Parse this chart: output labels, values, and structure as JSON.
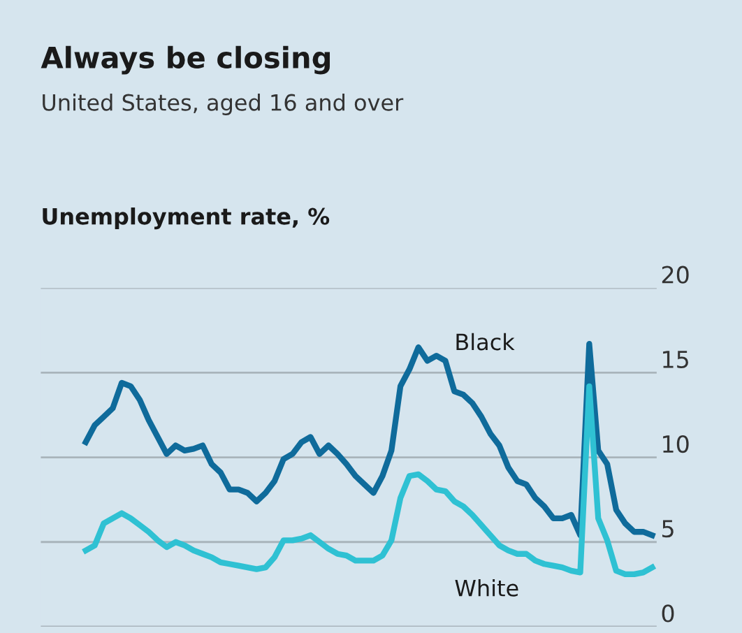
{
  "chart_data": {
    "type": "line",
    "title": "Always be closing",
    "subtitle": "United States, aged 16 and over",
    "ylabel": "Unemployment rate, %",
    "categories": [
      null,
      null,
      null,
      null,
      null,
      null,
      null,
      null,
      null,
      null,
      null,
      null,
      null,
      null,
      null,
      null,
      null,
      null,
      null,
      null,
      null,
      null,
      null,
      null,
      null,
      null,
      null,
      null,
      null,
      null,
      null,
      null,
      null,
      null,
      null,
      null,
      null,
      null,
      null,
      null,
      null,
      null,
      null,
      null,
      null,
      null,
      null,
      null,
      null,
      null,
      null,
      null,
      null,
      null,
      null,
      null,
      null,
      null,
      null,
      null,
      null,
      null,
      null,
      null
    ],
    "series": [
      {
        "name": "Black",
        "color": "#0f6b9b",
        "values": [
          10.9,
          11.9,
          12.4,
          12.9,
          14.4,
          14.2,
          13.4,
          12.2,
          11.2,
          10.2,
          10.7,
          10.4,
          10.5,
          10.7,
          9.6,
          9.1,
          8.1,
          8.1,
          7.9,
          7.4,
          7.9,
          8.6,
          9.9,
          10.2,
          10.9,
          11.2,
          10.2,
          10.7,
          10.2,
          9.6,
          8.9,
          8.4,
          7.9,
          8.9,
          10.4,
          14.2,
          15.2,
          16.5,
          15.7,
          16.0,
          15.7,
          13.9,
          13.7,
          13.2,
          12.4,
          11.4,
          10.7,
          9.4,
          8.6,
          8.4,
          7.6,
          7.1,
          6.4,
          6.4,
          6.6,
          5.4,
          16.7,
          10.4,
          9.6,
          6.9,
          6.1,
          5.6,
          5.6,
          5.4
        ]
      },
      {
        "name": "White",
        "color": "#2fc1d3",
        "values": [
          4.5,
          4.8,
          6.1,
          6.4,
          6.7,
          6.4,
          6.0,
          5.6,
          5.1,
          4.7,
          5.0,
          4.8,
          4.5,
          4.3,
          4.1,
          3.8,
          3.7,
          3.6,
          3.5,
          3.4,
          3.5,
          4.1,
          5.1,
          5.1,
          5.2,
          5.4,
          5.0,
          4.6,
          4.3,
          4.2,
          3.9,
          3.9,
          3.9,
          4.2,
          5.1,
          7.6,
          8.9,
          9.0,
          8.6,
          8.1,
          8.0,
          7.4,
          7.1,
          6.6,
          6.0,
          5.4,
          4.8,
          4.5,
          4.3,
          4.3,
          3.9,
          3.7,
          3.6,
          3.5,
          3.3,
          3.2,
          14.2,
          6.4,
          5.1,
          3.3,
          3.1,
          3.1,
          3.2,
          3.5
        ]
      }
    ],
    "ylim": [
      0,
      20
    ],
    "yticks": [
      0,
      5,
      10,
      15,
      20
    ],
    "grid": "y",
    "tick_labels": "y",
    "legend": false,
    "line_style": "solid",
    "marker": "none"
  }
}
